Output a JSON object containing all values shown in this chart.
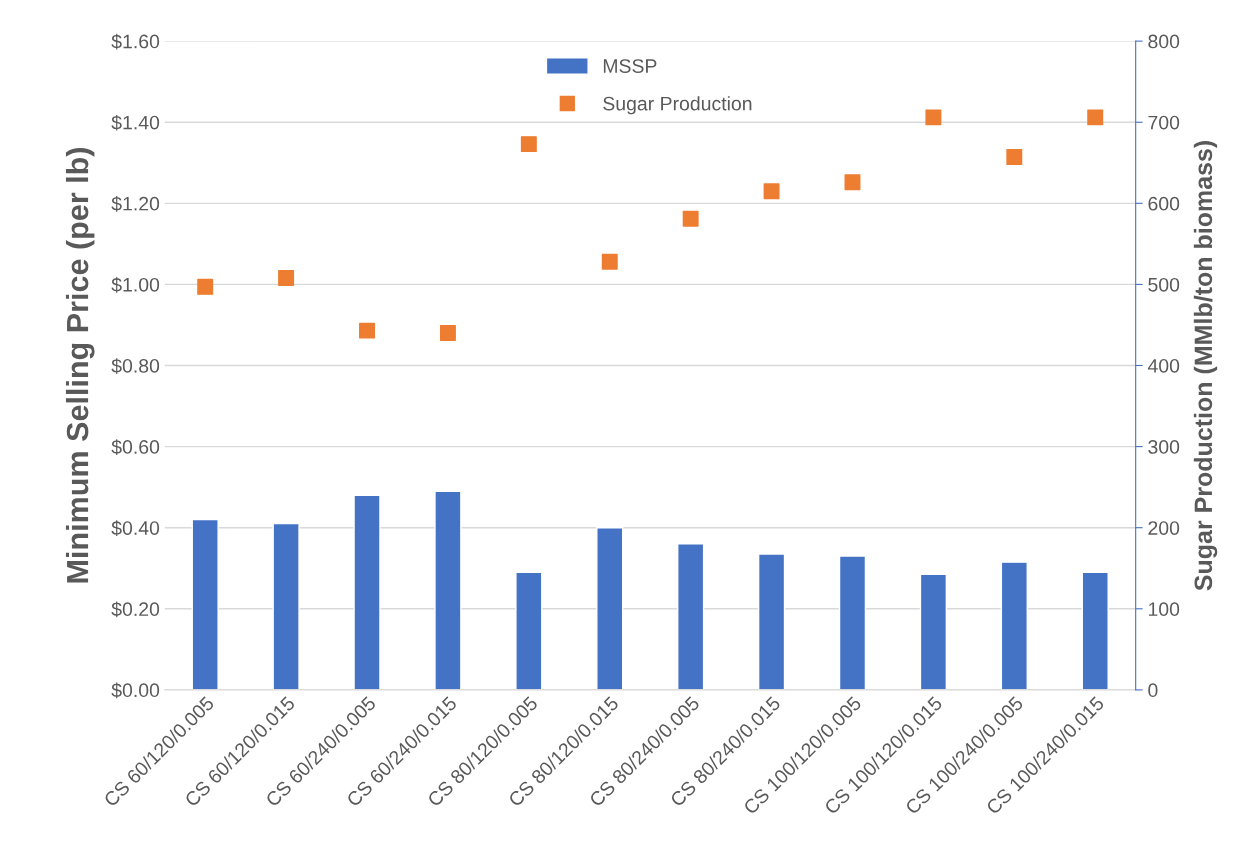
{
  "chart_data": {
    "type": "bar",
    "ylabel": "Minimum Selling Price (per lb)",
    "y2label": "Sugar Production (MMlb/ton biomass)",
    "categories": [
      "CS 60/120/0.005",
      "CS 60/120/0.015",
      "CS 60/240/0.005",
      "CS 60/240/0.015",
      "CS 80/120/0.005",
      "CS 80/120/0.015",
      "CS 80/240/0.005",
      "CS 80/240/0.015",
      "CS 100/120/0.005",
      "CS 100/120/0.015",
      "CS 100/240/0.005",
      "CS 100/240/0.015"
    ],
    "series": [
      {
        "name": "MSSP",
        "color": "#4472c4",
        "values": [
          0.42,
          0.41,
          0.48,
          0.49,
          0.29,
          0.4,
          0.36,
          0.335,
          0.33,
          0.285,
          0.315,
          0.29
        ]
      },
      {
        "name": "Sugar Production",
        "type": "scatter",
        "axis": "y2",
        "marker": "square",
        "color": "#ed7d31",
        "values": [
          497,
          508,
          443,
          440,
          673,
          528,
          581,
          615,
          626,
          706,
          657,
          706
        ]
      }
    ],
    "ylim": [
      0,
      1.6
    ],
    "yticks": [
      {
        "value": 0,
        "label": "$0.00"
      },
      {
        "value": 0.2,
        "label": "$0.20"
      },
      {
        "value": 0.4,
        "label": "$0.40"
      },
      {
        "value": 0.6,
        "label": "$0.60"
      },
      {
        "value": 0.8,
        "label": "$0.80"
      },
      {
        "value": 1.0,
        "label": "$1.00"
      },
      {
        "value": 1.2,
        "label": "$1.20"
      },
      {
        "value": 1.4,
        "label": "$1.40"
      },
      {
        "value": 1.6,
        "label": "$1.60"
      }
    ],
    "y2lim": [
      0,
      800
    ],
    "y2ticks": [
      0,
      100,
      200,
      300,
      400,
      500,
      600,
      700,
      800
    ],
    "grid": "y",
    "legend": "top"
  }
}
